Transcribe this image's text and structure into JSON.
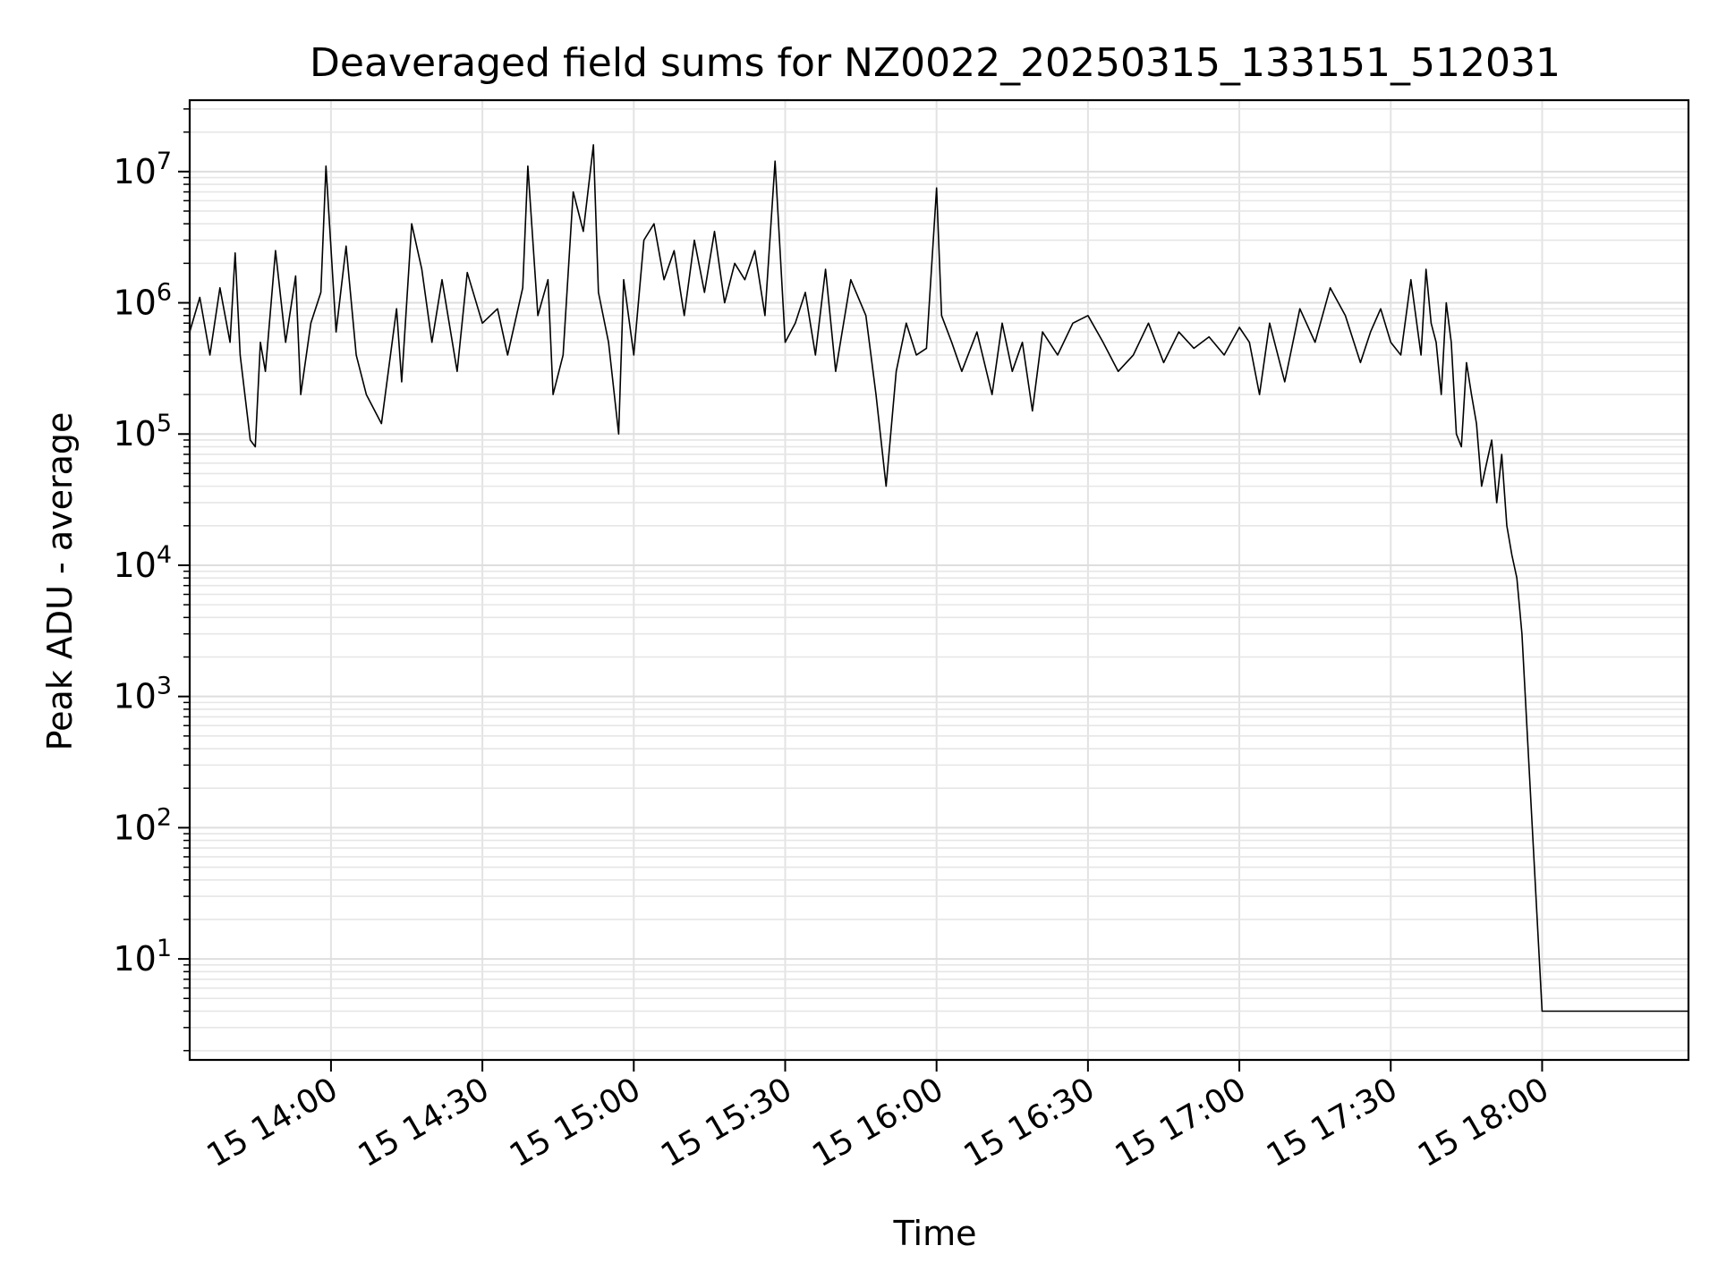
{
  "chart_data": {
    "type": "line",
    "title": "Deaveraged field sums for NZ0022_20250315_133151_512031",
    "xlabel": "Time",
    "ylabel": "Peak ADU - average",
    "x_axis": {
      "type": "datetime",
      "range": [
        "2025-03-15 13:32:00",
        "2025-03-15 18:29:00"
      ],
      "tick_values": [
        "2025-03-15 14:00",
        "2025-03-15 14:30",
        "2025-03-15 15:00",
        "2025-03-15 15:30",
        "2025-03-15 16:00",
        "2025-03-15 16:30",
        "2025-03-15 17:00",
        "2025-03-15 17:30",
        "2025-03-15 18:00"
      ],
      "tick_labels": [
        "15 14:00",
        "15 14:30",
        "15 15:00",
        "15 15:30",
        "15 16:00",
        "15 16:30",
        "15 17:00",
        "15 17:30",
        "15 18:00"
      ]
    },
    "y_axis": {
      "scale": "log",
      "range": [
        1.7,
        35000000
      ],
      "tick_values": [
        10,
        100,
        1000,
        10000,
        100000,
        1000000,
        10000000
      ],
      "tick_labels": [
        {
          "base": "10",
          "exp": "1"
        },
        {
          "base": "10",
          "exp": "2"
        },
        {
          "base": "10",
          "exp": "3"
        },
        {
          "base": "10",
          "exp": "4"
        },
        {
          "base": "10",
          "exp": "5"
        },
        {
          "base": "10",
          "exp": "6"
        },
        {
          "base": "10",
          "exp": "7"
        }
      ]
    },
    "grid": true,
    "legend": "none",
    "series": [
      {
        "color": "#000000",
        "x": [
          "2025-03-15 13:32:00",
          "2025-03-15 13:34:00",
          "2025-03-15 13:36:00",
          "2025-03-15 13:38:00",
          "2025-03-15 13:40:00",
          "2025-03-15 13:41:00",
          "2025-03-15 13:42:00",
          "2025-03-15 13:44:00",
          "2025-03-15 13:45:00",
          "2025-03-15 13:46:00",
          "2025-03-15 13:47:00",
          "2025-03-15 13:49:00",
          "2025-03-15 13:51:00",
          "2025-03-15 13:53:00",
          "2025-03-15 13:54:00",
          "2025-03-15 13:56:00",
          "2025-03-15 13:58:00",
          "2025-03-15 13:59:00",
          "2025-03-15 14:01:00",
          "2025-03-15 14:03:00",
          "2025-03-15 14:05:00",
          "2025-03-15 14:07:00",
          "2025-03-15 14:10:00",
          "2025-03-15 14:13:00",
          "2025-03-15 14:14:00",
          "2025-03-15 14:16:00",
          "2025-03-15 14:18:00",
          "2025-03-15 14:20:00",
          "2025-03-15 14:22:00",
          "2025-03-15 14:25:00",
          "2025-03-15 14:27:00",
          "2025-03-15 14:30:00",
          "2025-03-15 14:33:00",
          "2025-03-15 14:35:00",
          "2025-03-15 14:38:00",
          "2025-03-15 14:39:00",
          "2025-03-15 14:41:00",
          "2025-03-15 14:43:00",
          "2025-03-15 14:44:00",
          "2025-03-15 14:46:00",
          "2025-03-15 14:48:00",
          "2025-03-15 14:50:00",
          "2025-03-15 14:52:00",
          "2025-03-15 14:53:00",
          "2025-03-15 14:55:00",
          "2025-03-15 14:57:00",
          "2025-03-15 14:58:00",
          "2025-03-15 15:00:00",
          "2025-03-15 15:02:00",
          "2025-03-15 15:04:00",
          "2025-03-15 15:06:00",
          "2025-03-15 15:08:00",
          "2025-03-15 15:10:00",
          "2025-03-15 15:12:00",
          "2025-03-15 15:14:00",
          "2025-03-15 15:16:00",
          "2025-03-15 15:18:00",
          "2025-03-15 15:20:00",
          "2025-03-15 15:22:00",
          "2025-03-15 15:24:00",
          "2025-03-15 15:26:00",
          "2025-03-15 15:28:00",
          "2025-03-15 15:30:00",
          "2025-03-15 15:32:00",
          "2025-03-15 15:34:00",
          "2025-03-15 15:36:00",
          "2025-03-15 15:38:00",
          "2025-03-15 15:40:00",
          "2025-03-15 15:43:00",
          "2025-03-15 15:46:00",
          "2025-03-15 15:48:00",
          "2025-03-15 15:50:00",
          "2025-03-15 15:52:00",
          "2025-03-15 15:54:00",
          "2025-03-15 15:56:00",
          "2025-03-15 15:58:00",
          "2025-03-15 16:00:00",
          "2025-03-15 16:01:00",
          "2025-03-15 16:03:00",
          "2025-03-15 16:05:00",
          "2025-03-15 16:08:00",
          "2025-03-15 16:11:00",
          "2025-03-15 16:13:00",
          "2025-03-15 16:15:00",
          "2025-03-15 16:17:00",
          "2025-03-15 16:19:00",
          "2025-03-15 16:21:00",
          "2025-03-15 16:24:00",
          "2025-03-15 16:27:00",
          "2025-03-15 16:30:00",
          "2025-03-15 16:33:00",
          "2025-03-15 16:36:00",
          "2025-03-15 16:39:00",
          "2025-03-15 16:42:00",
          "2025-03-15 16:45:00",
          "2025-03-15 16:48:00",
          "2025-03-15 16:51:00",
          "2025-03-15 16:54:00",
          "2025-03-15 16:57:00",
          "2025-03-15 17:00:00",
          "2025-03-15 17:02:00",
          "2025-03-15 17:04:00",
          "2025-03-15 17:06:00",
          "2025-03-15 17:09:00",
          "2025-03-15 17:12:00",
          "2025-03-15 17:15:00",
          "2025-03-15 17:18:00",
          "2025-03-15 17:21:00",
          "2025-03-15 17:24:00",
          "2025-03-15 17:26:00",
          "2025-03-15 17:28:00",
          "2025-03-15 17:30:00",
          "2025-03-15 17:32:00",
          "2025-03-15 17:34:00",
          "2025-03-15 17:36:00",
          "2025-03-15 17:37:00",
          "2025-03-15 17:38:00",
          "2025-03-15 17:39:00",
          "2025-03-15 17:40:00",
          "2025-03-15 17:41:00",
          "2025-03-15 17:42:00",
          "2025-03-15 17:43:00",
          "2025-03-15 17:44:00",
          "2025-03-15 17:45:00",
          "2025-03-15 17:46:00",
          "2025-03-15 17:47:00",
          "2025-03-15 17:48:00",
          "2025-03-15 17:49:00",
          "2025-03-15 17:50:00",
          "2025-03-15 17:51:00",
          "2025-03-15 17:52:00",
          "2025-03-15 17:53:00",
          "2025-03-15 17:54:00",
          "2025-03-15 17:55:00",
          "2025-03-15 17:56:00",
          "2025-03-15 18:00:00",
          "2025-03-15 18:05:00",
          "2025-03-15 18:10:00",
          "2025-03-15 18:15:00",
          "2025-03-15 18:20:00",
          "2025-03-15 18:25:00",
          "2025-03-15 18:29:00"
        ],
        "y": [
          600000,
          1100000,
          400000,
          1300000,
          500000,
          2400000,
          400000,
          90000,
          80000,
          500000,
          300000,
          2500000,
          500000,
          1600000,
          200000,
          700000,
          1200000,
          11000000,
          600000,
          2700000,
          400000,
          200000,
          120000,
          900000,
          250000,
          4000000,
          1800000,
          500000,
          1500000,
          300000,
          1700000,
          700000,
          900000,
          400000,
          1300000,
          11000000,
          800000,
          1500000,
          200000,
          400000,
          7000000,
          3500000,
          16000000,
          1200000,
          500000,
          100000,
          1500000,
          400000,
          3000000,
          4000000,
          1500000,
          2500000,
          800000,
          3000000,
          1200000,
          3500000,
          1000000,
          2000000,
          1500000,
          2500000,
          800000,
          12000000,
          500000,
          700000,
          1200000,
          400000,
          1800000,
          300000,
          1500000,
          800000,
          200000,
          40000,
          300000,
          700000,
          400000,
          450000,
          7500000,
          800000,
          500000,
          300000,
          600000,
          200000,
          700000,
          300000,
          500000,
          150000,
          600000,
          400000,
          700000,
          800000,
          500000,
          300000,
          400000,
          700000,
          350000,
          600000,
          450000,
          550000,
          400000,
          650000,
          500000,
          200000,
          700000,
          250000,
          900000,
          500000,
          1300000,
          800000,
          350000,
          600000,
          900000,
          500000,
          400000,
          1500000,
          400000,
          1800000,
          700000,
          500000,
          200000,
          1000000,
          500000,
          100000,
          80000,
          350000,
          200000,
          120000,
          40000,
          60000,
          90000,
          30000,
          70000,
          20000,
          12000,
          8000,
          3000,
          4,
          4,
          4,
          4,
          4,
          4,
          4
        ]
      }
    ]
  }
}
